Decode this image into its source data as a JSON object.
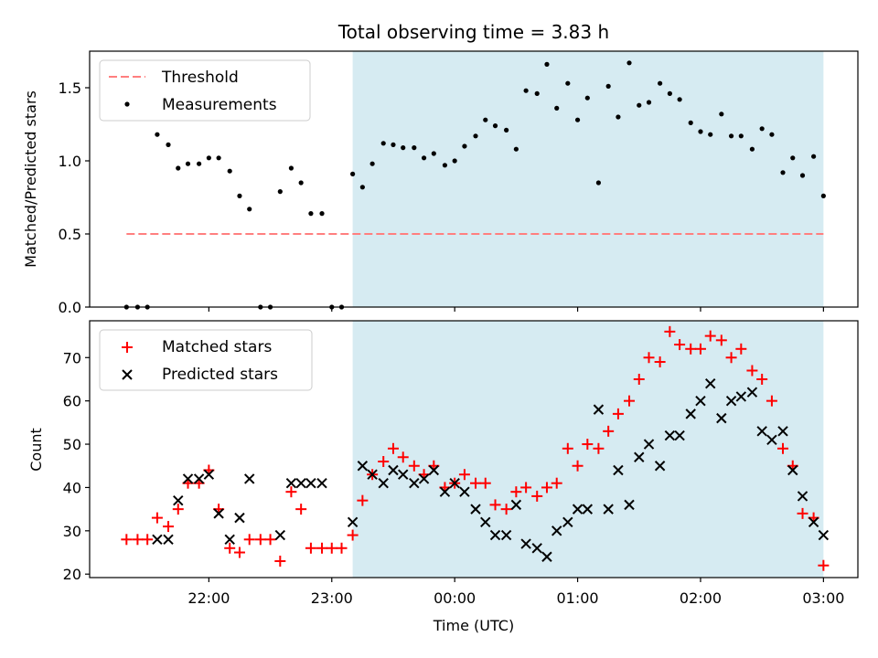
{
  "chart_data": {
    "title": "Total observing time = 3.83 h",
    "type": "scatter",
    "xlabel": "Time (UTC)",
    "xticks": [
      {
        "value": 22,
        "label": "22:00"
      },
      {
        "value": 23,
        "label": "23:00"
      },
      {
        "value": 24,
        "label": "00:00"
      },
      {
        "value": 25,
        "label": "01:00"
      },
      {
        "value": 26,
        "label": "02:00"
      },
      {
        "value": 27,
        "label": "03:00"
      }
    ],
    "xlim": [
      21.03,
      27.28
    ],
    "shaded_region": {
      "x_start": 23.17,
      "x_end": 27.0,
      "color": "#add8e6"
    },
    "panels": [
      {
        "ylabel": "Matched/Predicted stars",
        "ylim": [
          0,
          1.75
        ],
        "yticks": [
          {
            "value": 0.0,
            "label": "0.0"
          },
          {
            "value": 0.5,
            "label": "0.5"
          },
          {
            "value": 1.0,
            "label": "1.0"
          },
          {
            "value": 1.5,
            "label": "1.5"
          }
        ],
        "legend_position": "upper-left",
        "threshold": {
          "name": "Threshold",
          "value": 0.5,
          "x_start": 21.33,
          "x_end": 27.0,
          "color": "#ff7f7f",
          "style": "dashed"
        },
        "series": [
          {
            "name": "Measurements",
            "marker": "dot",
            "color": "#000000",
            "x": [
              21.33,
              21.42,
              21.5,
              21.58,
              21.67,
              21.75,
              21.83,
              21.92,
              22.0,
              22.08,
              22.17,
              22.25,
              22.33,
              22.42,
              22.5,
              22.58,
              22.67,
              22.75,
              22.83,
              22.92,
              23.0,
              23.08,
              23.17,
              23.25,
              23.33,
              23.42,
              23.5,
              23.58,
              23.67,
              23.75,
              23.83,
              23.92,
              24.0,
              24.08,
              24.17,
              24.25,
              24.33,
              24.42,
              24.5,
              24.58,
              24.67,
              24.75,
              24.83,
              24.92,
              25.0,
              25.08,
              25.17,
              25.25,
              25.33,
              25.42,
              25.5,
              25.58,
              25.67,
              25.75,
              25.83,
              25.92,
              26.0,
              26.08,
              26.17,
              26.25,
              26.33,
              26.42,
              26.5,
              26.58,
              26.67,
              26.75,
              26.83,
              26.92,
              27.0
            ],
            "y": [
              0.0,
              0.0,
              0.0,
              1.18,
              1.11,
              0.95,
              0.98,
              0.98,
              1.02,
              1.02,
              0.93,
              0.76,
              0.67,
              0.0,
              0.0,
              0.79,
              0.95,
              0.85,
              0.64,
              0.64,
              0.0,
              0.0,
              0.91,
              0.82,
              0.98,
              1.12,
              1.11,
              1.09,
              1.09,
              1.02,
              1.05,
              0.97,
              1.0,
              1.1,
              1.17,
              1.28,
              1.24,
              1.21,
              1.08,
              1.48,
              1.46,
              1.66,
              1.36,
              1.53,
              1.28,
              1.43,
              0.85,
              1.51,
              1.3,
              1.67,
              1.38,
              1.4,
              1.53,
              1.46,
              1.42,
              1.26,
              1.2,
              1.18,
              1.32,
              1.17,
              1.17,
              1.08,
              1.22,
              1.18,
              0.92,
              1.02,
              0.9,
              1.03,
              0.76
            ]
          }
        ]
      },
      {
        "ylabel": "Count",
        "ylim": [
          19.2,
          78.5
        ],
        "yticks": [
          {
            "value": 20,
            "label": "20"
          },
          {
            "value": 30,
            "label": "30"
          },
          {
            "value": 40,
            "label": "40"
          },
          {
            "value": 50,
            "label": "50"
          },
          {
            "value": 60,
            "label": "60"
          },
          {
            "value": 70,
            "label": "70"
          }
        ],
        "legend_position": "upper-left",
        "series": [
          {
            "name": "Matched stars",
            "marker": "plus",
            "color": "#ff0000",
            "x": [
              21.33,
              21.42,
              21.5,
              21.58,
              21.67,
              21.75,
              21.83,
              21.92,
              22.0,
              22.08,
              22.17,
              22.25,
              22.33,
              22.42,
              22.5,
              22.58,
              22.67,
              22.75,
              22.83,
              22.92,
              23.0,
              23.08,
              23.17,
              23.25,
              23.33,
              23.42,
              23.5,
              23.58,
              23.67,
              23.75,
              23.83,
              23.92,
              24.0,
              24.08,
              24.17,
              24.25,
              24.33,
              24.42,
              24.5,
              24.58,
              24.67,
              24.75,
              24.83,
              24.92,
              25.0,
              25.08,
              25.17,
              25.25,
              25.33,
              25.42,
              25.5,
              25.58,
              25.67,
              25.75,
              25.83,
              25.92,
              26.0,
              26.08,
              26.17,
              26.25,
              26.33,
              26.42,
              26.5,
              26.58,
              26.67,
              26.75,
              26.83,
              26.92,
              27.0
            ],
            "y": [
              28,
              28,
              28,
              33,
              31,
              35,
              41,
              41,
              44,
              35,
              26,
              25,
              28,
              28,
              28,
              23,
              39,
              35,
              26,
              26,
              26,
              26,
              29,
              37,
              43,
              46,
              49,
              47,
              45,
              43,
              45,
              40,
              41,
              43,
              41,
              41,
              36,
              35,
              39,
              40,
              38,
              40,
              41,
              49,
              45,
              50,
              49,
              53,
              57,
              60,
              65,
              70,
              69,
              76,
              73,
              72,
              72,
              75,
              74,
              70,
              72,
              67,
              65,
              60,
              49,
              45,
              34,
              33,
              22
            ]
          },
          {
            "name": "Predicted stars",
            "marker": "x",
            "color": "#000000",
            "x": [
              21.58,
              21.67,
              21.75,
              21.83,
              21.92,
              22.0,
              22.08,
              22.17,
              22.25,
              22.33,
              22.58,
              22.67,
              22.75,
              22.83,
              22.92,
              23.17,
              23.25,
              23.33,
              23.42,
              23.5,
              23.58,
              23.67,
              23.75,
              23.83,
              23.92,
              24.0,
              24.08,
              24.17,
              24.25,
              24.33,
              24.42,
              24.5,
              24.58,
              24.67,
              24.75,
              24.83,
              24.92,
              25.0,
              25.08,
              25.17,
              25.25,
              25.33,
              25.42,
              25.5,
              25.58,
              25.67,
              25.75,
              25.83,
              25.92,
              26.0,
              26.08,
              26.17,
              26.25,
              26.33,
              26.42,
              26.5,
              26.58,
              26.67,
              26.75,
              26.83,
              26.92,
              27.0
            ],
            "y": [
              28,
              28,
              37,
              42,
              42,
              43,
              34,
              28,
              33,
              42,
              29,
              41,
              41,
              41,
              41,
              32,
              45,
              43,
              41,
              44,
              43,
              41,
              42,
              44,
              39,
              41,
              39,
              35,
              32,
              29,
              29,
              36,
              27,
              26,
              24,
              30,
              32,
              35,
              35,
              58,
              35,
              44,
              36,
              47,
              50,
              45,
              52,
              52,
              57,
              60,
              64,
              56,
              60,
              61,
              62,
              53,
              51,
              53,
              44,
              38,
              32,
              29
            ]
          }
        ]
      }
    ]
  }
}
